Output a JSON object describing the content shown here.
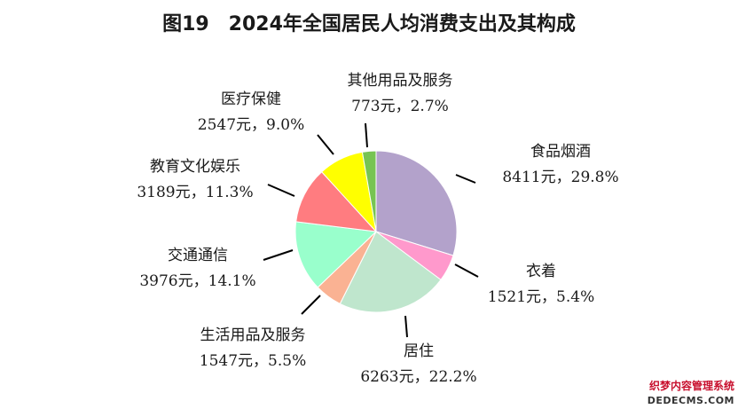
{
  "chart_data": {
    "type": "pie",
    "title": "图19　2024年全国居民人均消费支出及其构成",
    "start_angle_deg": 0,
    "direction": "clockwise",
    "slices": [
      {
        "name": "食品烟酒",
        "value": 8411,
        "percent": 29.8,
        "value_label": "8411元，29.8%",
        "color": "#b3a2cb"
      },
      {
        "name": "衣着",
        "value": 1521,
        "percent": 5.4,
        "value_label": "1521元，5.4%",
        "color": "#ff99cc"
      },
      {
        "name": "居住",
        "value": 6263,
        "percent": 22.2,
        "value_label": "6263元，22.2%",
        "color": "#bfe6cd"
      },
      {
        "name": "生活用品及服务",
        "value": 1547,
        "percent": 5.5,
        "value_label": "1547元，5.5%",
        "color": "#fab293"
      },
      {
        "name": "交通通信",
        "value": 3976,
        "percent": 14.1,
        "value_label": "3976元，14.1%",
        "color": "#99ffcc"
      },
      {
        "name": "教育文化娱乐",
        "value": 3189,
        "percent": 11.3,
        "value_label": "3189元，11.3%",
        "color": "#ff7c80"
      },
      {
        "name": "医疗保健",
        "value": 2547,
        "percent": 9.0,
        "value_label": "2547元，9.0%",
        "color": "#ffff00"
      },
      {
        "name": "其他用品及服务",
        "value": 773,
        "percent": 2.7,
        "value_label": "773元，2.7%",
        "color": "#77c452"
      }
    ]
  },
  "watermark": {
    "line1": "织梦内容管理系统",
    "line2": "DEDECMS.COM"
  }
}
